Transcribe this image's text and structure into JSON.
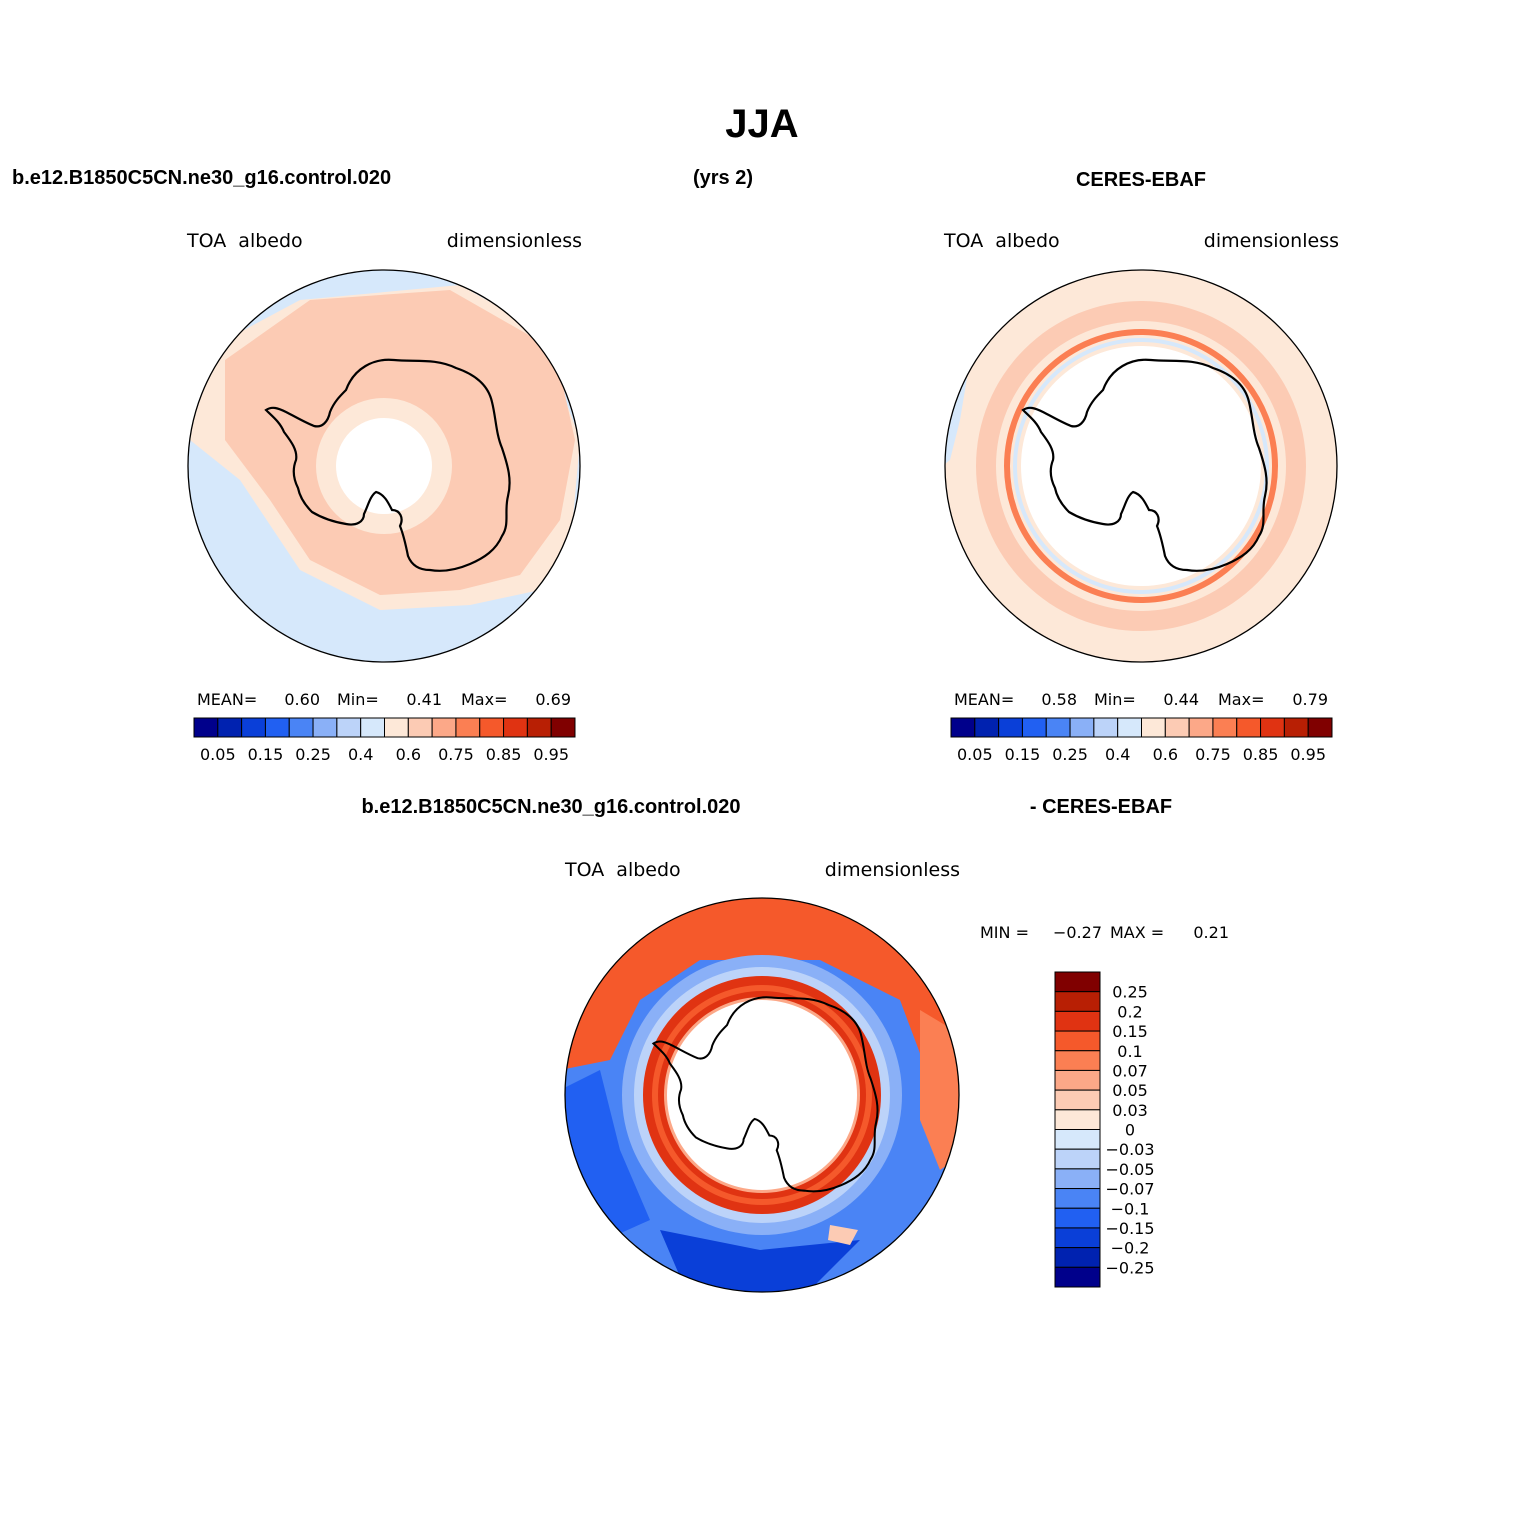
{
  "chart_data": {
    "type": "heatmap",
    "title": "JJA",
    "header": {
      "case": "b.e12.B1850C5CN.ne30_g16.control.020",
      "years": "(yrs 2)",
      "obs": "CERES-EBAF",
      "diff_case": "b.e12.B1850C5CN.ne30_g16.control.020",
      "diff_obs": "- CERES-EBAF"
    },
    "panels": [
      {
        "name": "model",
        "variable": "TOA  albedo",
        "units": "dimensionless",
        "stats": {
          "mean_label": "MEAN=",
          "mean": "0.60",
          "min_label": "Min=",
          "min": "0.41",
          "max_label": "Max=",
          "max": "0.69"
        }
      },
      {
        "name": "observation",
        "variable": "TOA  albedo",
        "units": "dimensionless",
        "stats": {
          "mean_label": "MEAN=",
          "mean": "0.58",
          "min_label": "Min=",
          "min": "0.44",
          "max_label": "Max=",
          "max": "0.79"
        }
      },
      {
        "name": "difference",
        "variable": "TOA  albedo",
        "units": "dimensionless",
        "stats": {
          "min_label": "MIN =",
          "min": "−0.27",
          "max_label": "MAX =",
          "max": "0.21"
        }
      }
    ],
    "colorbar_main": {
      "colors": [
        "#00008b",
        "#0022b0",
        "#0a3fd8",
        "#2160f2",
        "#4a84f5",
        "#8ab0f7",
        "#bcd3f9",
        "#d6e8fb",
        "#fde8d8",
        "#fccbb4",
        "#fca888",
        "#fb7f53",
        "#f5592b",
        "#e03312",
        "#b81f04",
        "#800000"
      ],
      "tick_labels": [
        "0.05",
        "0.15",
        "0.25",
        "0.4",
        "0.6",
        "0.75",
        "0.85",
        "0.95"
      ]
    },
    "colorbar_diff": {
      "colors_top_to_bottom": [
        "#800000",
        "#b81f04",
        "#e03312",
        "#f5592b",
        "#fb7f53",
        "#fca888",
        "#fccbb4",
        "#fde8d8",
        "#d6e8fb",
        "#bcd3f9",
        "#8ab0f7",
        "#4a84f5",
        "#2160f2",
        "#0a3fd8",
        "#0022b0",
        "#00008b"
      ],
      "tick_labels": [
        "0.25",
        "0.2",
        "0.15",
        "0.1",
        "0.07",
        "0.05",
        "0.03",
        "0",
        "−0.03",
        "−0.05",
        "−0.07",
        "−0.1",
        "−0.15",
        "−0.2",
        "−0.25"
      ]
    }
  }
}
